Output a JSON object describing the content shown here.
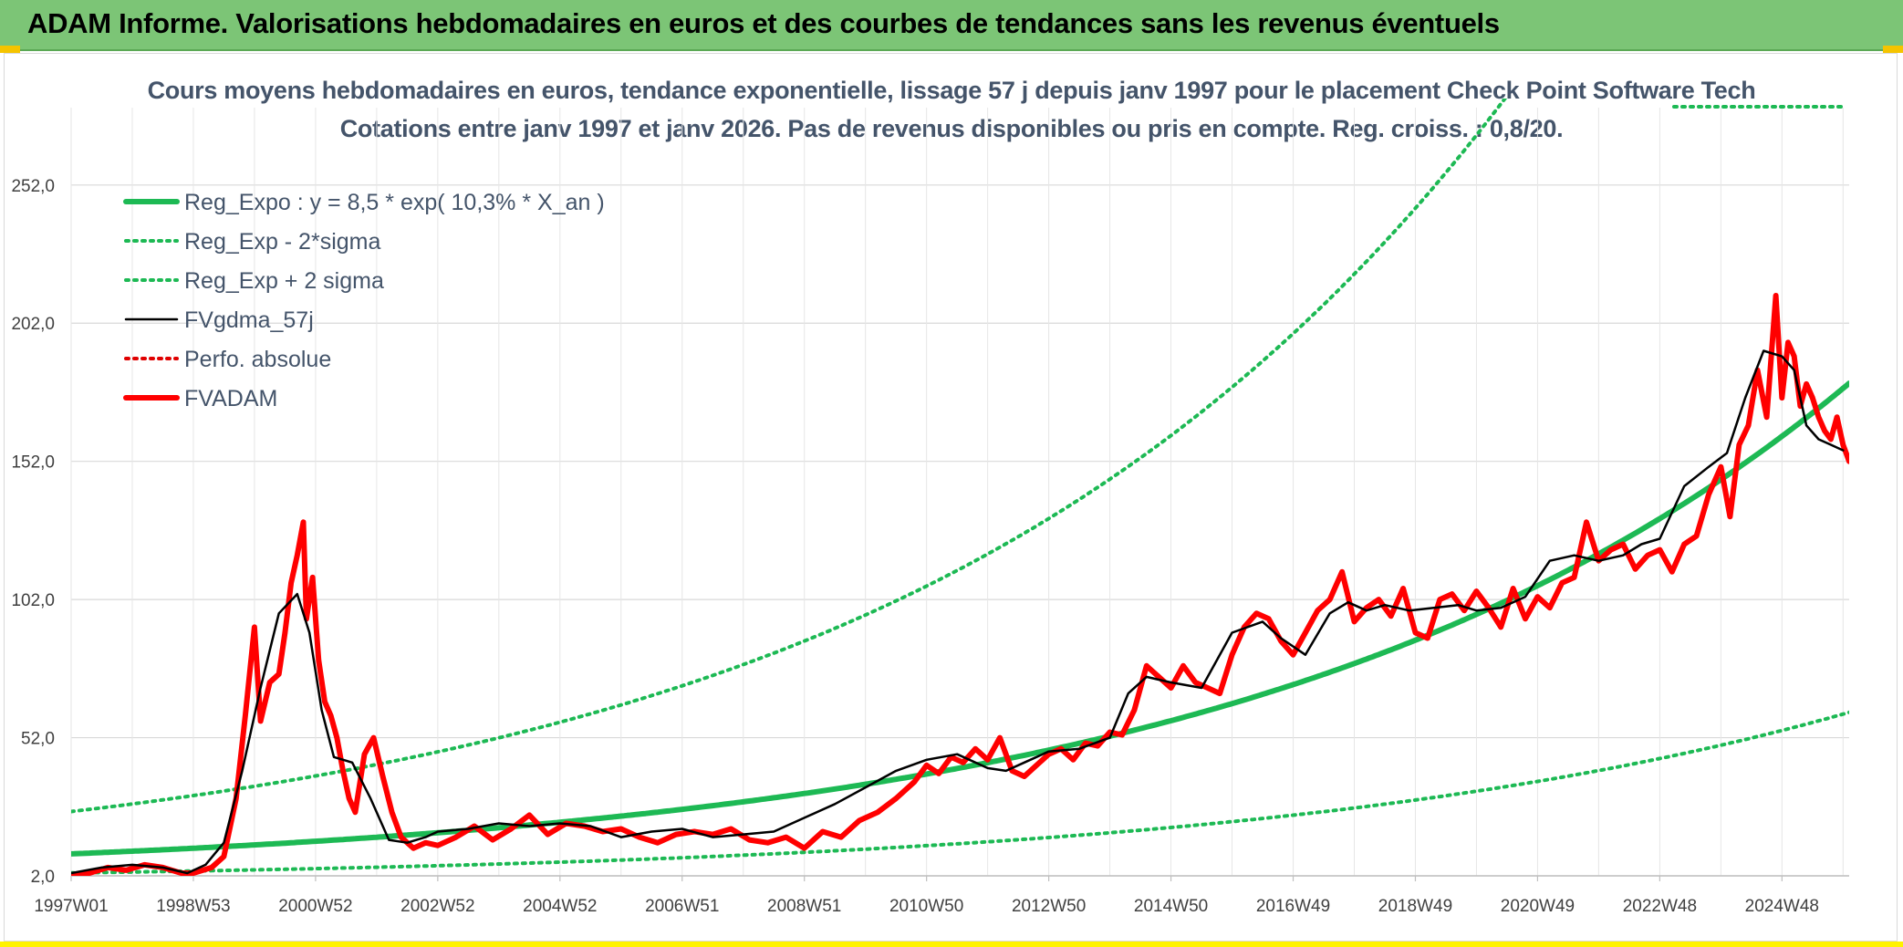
{
  "banner": {
    "title": "ADAM Informe. Valorisations hebdomadaires en euros et des courbes de tendances sans les revenus éventuels"
  },
  "colors": {
    "banner_bg": "#7cc576",
    "reg_expo": "#1db954",
    "sigma_lines": "#1db954",
    "fvgdma": "#000000",
    "perfo": "#e00000",
    "fvadam": "#ff0000"
  },
  "chart_data": {
    "type": "line",
    "title": "Cours moyens hebdomadaires en euros, tendance exponentielle, lissage 57 j depuis janv 1997 pour le placement Check Point Software Tech",
    "subtitle": "Cotations entre janv 1997 et janv 2026. Pas de revenus disponibles ou pris en compte. Reg. croiss. : 0,8/20.",
    "xlabel": "",
    "ylabel": "",
    "x_range": [
      1997.0,
      2026.1
    ],
    "ylim": [
      2.0,
      280.0
    ],
    "grid": true,
    "legend_position": "top-left",
    "y_ticks": [
      "2,0",
      "52,0",
      "102,0",
      "152,0",
      "202,0",
      "252,0"
    ],
    "y_tick_values": [
      2.0,
      52.0,
      102.0,
      152.0,
      202.0,
      252.0
    ],
    "x_ticks": [
      "1997W01",
      "1998W53",
      "2000W52",
      "2002W52",
      "2004W52",
      "2006W51",
      "2008W51",
      "2010W50",
      "2012W50",
      "2014W50",
      "2016W49",
      "2018W49",
      "2020W49",
      "2022W48",
      "2024W48"
    ],
    "x_tick_values": [
      1997.0,
      1999.0,
      2001.0,
      2003.0,
      2005.0,
      2007.0,
      2009.0,
      2011.0,
      2013.0,
      2015.0,
      2017.0,
      2019.0,
      2021.0,
      2023.0,
      2025.0
    ],
    "series": [
      {
        "name": "Reg_Expo : y = 8,5 * exp( 10,3% *  X_an )",
        "style": "solid-thick",
        "color": "#1db954",
        "formula": {
          "a": 8.5,
          "b": 0.103,
          "x0": 1996.5,
          "offset": 1.0
        }
      },
      {
        "name": "Reg_Exp - 2*sigma",
        "style": "dotted",
        "color": "#1db954",
        "formula": {
          "a": 2.9,
          "b": 0.103,
          "x0": 1996.5,
          "offset": 0.0
        }
      },
      {
        "name": "Reg_Exp + 2 sigma",
        "style": "dotted",
        "color": "#1db954",
        "formula": {
          "a": 24.0,
          "b": 0.103,
          "x0": 1996.5,
          "offset": 0.0
        }
      },
      {
        "name": "FVgdma_57j",
        "style": "solid",
        "color": "#000000",
        "x": [
          1997.0,
          1997.5,
          1998.0,
          1998.5,
          1998.9,
          1999.2,
          1999.5,
          1999.8,
          2000.1,
          2000.4,
          2000.7,
          2000.9,
          2001.1,
          2001.3,
          2001.6,
          2001.9,
          2002.2,
          2002.5,
          2002.8,
          2003.0,
          2003.5,
          2004.0,
          2004.5,
          2005.0,
          2005.5,
          2006.0,
          2006.5,
          2007.0,
          2007.5,
          2008.0,
          2008.5,
          2009.0,
          2009.5,
          2010.0,
          2010.5,
          2011.0,
          2011.5,
          2012.0,
          2012.3,
          2012.6,
          2013.0,
          2013.5,
          2014.0,
          2014.3,
          2014.6,
          2014.8,
          2015.0,
          2015.5,
          2016.0,
          2016.5,
          2016.8,
          2017.2,
          2017.6,
          2017.9,
          2018.2,
          2018.5,
          2018.9,
          2019.3,
          2019.7,
          2020.0,
          2020.4,
          2020.8,
          2021.2,
          2021.6,
          2022.0,
          2022.4,
          2022.7,
          2023.0,
          2023.4,
          2023.8,
          2024.1,
          2024.4,
          2024.7,
          2025.0,
          2025.2,
          2025.4,
          2025.6,
          2025.8,
          2026.0
        ],
        "values": [
          3,
          5,
          6,
          5,
          3,
          6,
          14,
          40,
          70,
          97,
          104,
          90,
          62,
          45,
          43,
          30,
          15,
          14,
          16,
          18,
          19,
          21,
          20,
          21,
          20,
          16,
          18,
          19,
          16,
          17,
          18,
          23,
          28,
          34,
          40,
          44,
          46,
          41,
          40,
          43,
          47,
          48,
          52,
          68,
          74,
          73,
          72,
          70,
          90,
          94,
          88,
          82,
          97,
          101,
          98,
          100,
          98,
          99,
          100,
          98,
          99,
          103,
          116,
          118,
          116,
          118,
          122,
          124,
          143,
          150,
          155,
          175,
          192,
          190,
          185,
          165,
          160,
          158,
          156
        ]
      },
      {
        "name": "Perfo. absolue",
        "style": "dotted",
        "color": "#e00000",
        "x": [],
        "values": []
      },
      {
        "name": "FVADAM",
        "style": "solid-thick",
        "color": "#ff0000",
        "x": [
          1997.0,
          1997.3,
          1997.6,
          1997.9,
          1998.2,
          1998.5,
          1998.8,
          1999.0,
          1999.3,
          1999.5,
          1999.7,
          1999.85,
          2000.0,
          2000.1,
          2000.25,
          2000.4,
          2000.5,
          2000.6,
          2000.7,
          2000.8,
          2000.85,
          2000.95,
          2001.05,
          2001.15,
          2001.25,
          2001.35,
          2001.45,
          2001.55,
          2001.65,
          2001.8,
          2001.95,
          2002.1,
          2002.25,
          2002.4,
          2002.6,
          2002.8,
          2003.0,
          2003.3,
          2003.6,
          2003.9,
          2004.2,
          2004.5,
          2004.8,
          2005.1,
          2005.4,
          2005.7,
          2006.0,
          2006.3,
          2006.6,
          2006.9,
          2007.2,
          2007.5,
          2007.8,
          2008.1,
          2008.4,
          2008.7,
          2009.0,
          2009.3,
          2009.6,
          2009.9,
          2010.2,
          2010.5,
          2010.8,
          2011.0,
          2011.2,
          2011.4,
          2011.6,
          2011.8,
          2012.0,
          2012.2,
          2012.4,
          2012.6,
          2012.8,
          2013.0,
          2013.2,
          2013.4,
          2013.6,
          2013.8,
          2014.0,
          2014.2,
          2014.4,
          2014.6,
          2014.8,
          2015.0,
          2015.2,
          2015.4,
          2015.6,
          2015.8,
          2016.0,
          2016.2,
          2016.4,
          2016.6,
          2016.8,
          2017.0,
          2017.2,
          2017.4,
          2017.6,
          2017.8,
          2018.0,
          2018.2,
          2018.4,
          2018.6,
          2018.8,
          2019.0,
          2019.2,
          2019.4,
          2019.6,
          2019.8,
          2020.0,
          2020.2,
          2020.4,
          2020.6,
          2020.8,
          2021.0,
          2021.2,
          2021.4,
          2021.6,
          2021.8,
          2022.0,
          2022.2,
          2022.4,
          2022.6,
          2022.8,
          2023.0,
          2023.2,
          2023.4,
          2023.6,
          2023.8,
          2024.0,
          2024.15,
          2024.3,
          2024.45,
          2024.6,
          2024.75,
          2024.9,
          2025.0,
          2025.1,
          2025.2,
          2025.3,
          2025.4,
          2025.5,
          2025.6,
          2025.7,
          2025.8,
          2025.9,
          2026.0,
          2026.1
        ],
        "values": [
          2,
          3,
          5,
          4,
          6,
          5,
          3,
          3,
          5,
          9,
          30,
          60,
          92,
          58,
          72,
          75,
          90,
          108,
          118,
          130,
          95,
          110,
          80,
          65,
          60,
          52,
          40,
          30,
          25,
          46,
          52,
          38,
          25,
          16,
          12,
          14,
          13,
          16,
          20,
          15,
          19,
          24,
          17,
          21,
          20,
          18,
          19,
          16,
          14,
          17,
          18,
          17,
          19,
          15,
          14,
          16,
          12,
          18,
          16,
          22,
          25,
          30,
          36,
          42,
          39,
          45,
          43,
          48,
          44,
          52,
          40,
          38,
          42,
          46,
          48,
          44,
          50,
          49,
          54,
          53,
          62,
          78,
          74,
          70,
          78,
          72,
          70,
          68,
          82,
          92,
          97,
          95,
          87,
          82,
          90,
          98,
          102,
          112,
          94,
          99,
          102,
          96,
          106,
          90,
          88,
          102,
          104,
          98,
          105,
          99,
          92,
          106,
          95,
          103,
          99,
          108,
          110,
          130,
          116,
          120,
          122,
          113,
          118,
          120,
          112,
          122,
          125,
          140,
          150,
          132,
          158,
          165,
          185,
          168,
          212,
          175,
          195,
          190,
          172,
          180,
          175,
          168,
          163,
          160,
          168,
          158,
          152
        ]
      }
    ]
  }
}
